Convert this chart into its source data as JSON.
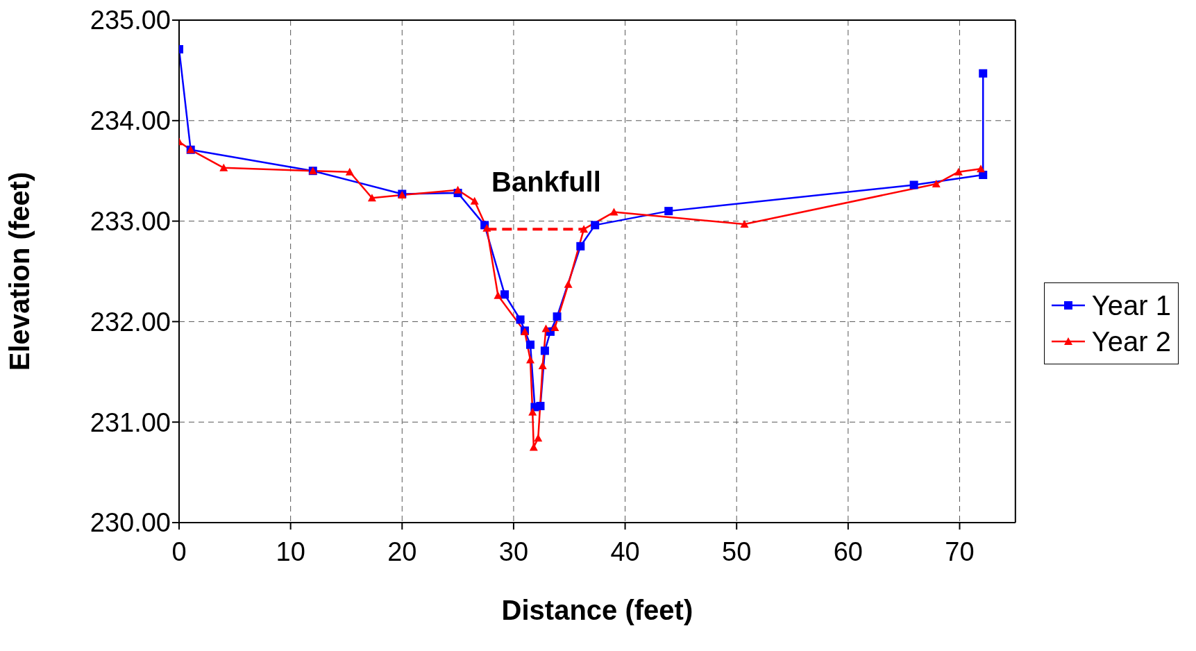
{
  "chart_data": {
    "type": "line",
    "xlabel": "Distance (feet)",
    "ylabel": "Elevation (feet)",
    "xlim": [
      0,
      75
    ],
    "xticks": [
      0,
      10,
      20,
      30,
      40,
      50,
      60,
      70
    ],
    "ylim": [
      230,
      235
    ],
    "yticks": [
      {
        "value": 230,
        "label": "230.00"
      },
      {
        "value": 231,
        "label": "231.00"
      },
      {
        "value": 232,
        "label": "232.00"
      },
      {
        "value": 233,
        "label": "233.00"
      },
      {
        "value": 234,
        "label": "234.00"
      },
      {
        "value": 235,
        "label": "235.00"
      }
    ],
    "grid": true,
    "legend": "right",
    "line_style": "solid",
    "annotations": [
      "Bankfull"
    ],
    "series": [
      {
        "name": "Year 1",
        "color": "#0000ff",
        "marker": "square",
        "x": [
          0,
          1.04,
          12,
          20,
          25,
          27.4,
          29.2,
          30.6,
          31,
          31.5,
          31.9,
          32.4,
          32.8,
          33.3,
          33.9,
          36,
          37.3,
          43.9,
          65.9,
          72.1,
          72.1
        ],
        "values": [
          234.71,
          233.71,
          233.5,
          233.27,
          233.28,
          232.96,
          232.27,
          232.02,
          231.91,
          231.77,
          231.15,
          231.16,
          231.71,
          231.9,
          232.05,
          232.75,
          232.96,
          233.1,
          233.36,
          233.46,
          234.47
        ]
      },
      {
        "name": "Year 2",
        "color": "#ff0000",
        "marker": "triangle",
        "x": [
          0,
          1.04,
          4,
          12,
          15.3,
          17.3,
          20,
          25,
          26.5,
          27.6,
          28.6,
          31,
          31.5,
          31.7,
          31.8,
          32.2,
          32.6,
          32.9,
          33.7,
          34.9,
          36.3,
          39,
          50.7,
          67.9,
          69.9,
          71.9
        ],
        "values": [
          233.79,
          233.71,
          233.53,
          233.5,
          233.49,
          233.23,
          233.26,
          233.31,
          233.2,
          232.93,
          232.26,
          231.9,
          231.62,
          231.1,
          230.75,
          230.84,
          231.56,
          231.93,
          231.94,
          232.37,
          232.92,
          233.09,
          232.97,
          233.37,
          233.49,
          233.52
        ]
      },
      {
        "color": "#ff0000",
        "line_style": "dashed",
        "x": [
          27.6,
          36.3
        ],
        "values": [
          232.92,
          232.92
        ]
      }
    ]
  }
}
